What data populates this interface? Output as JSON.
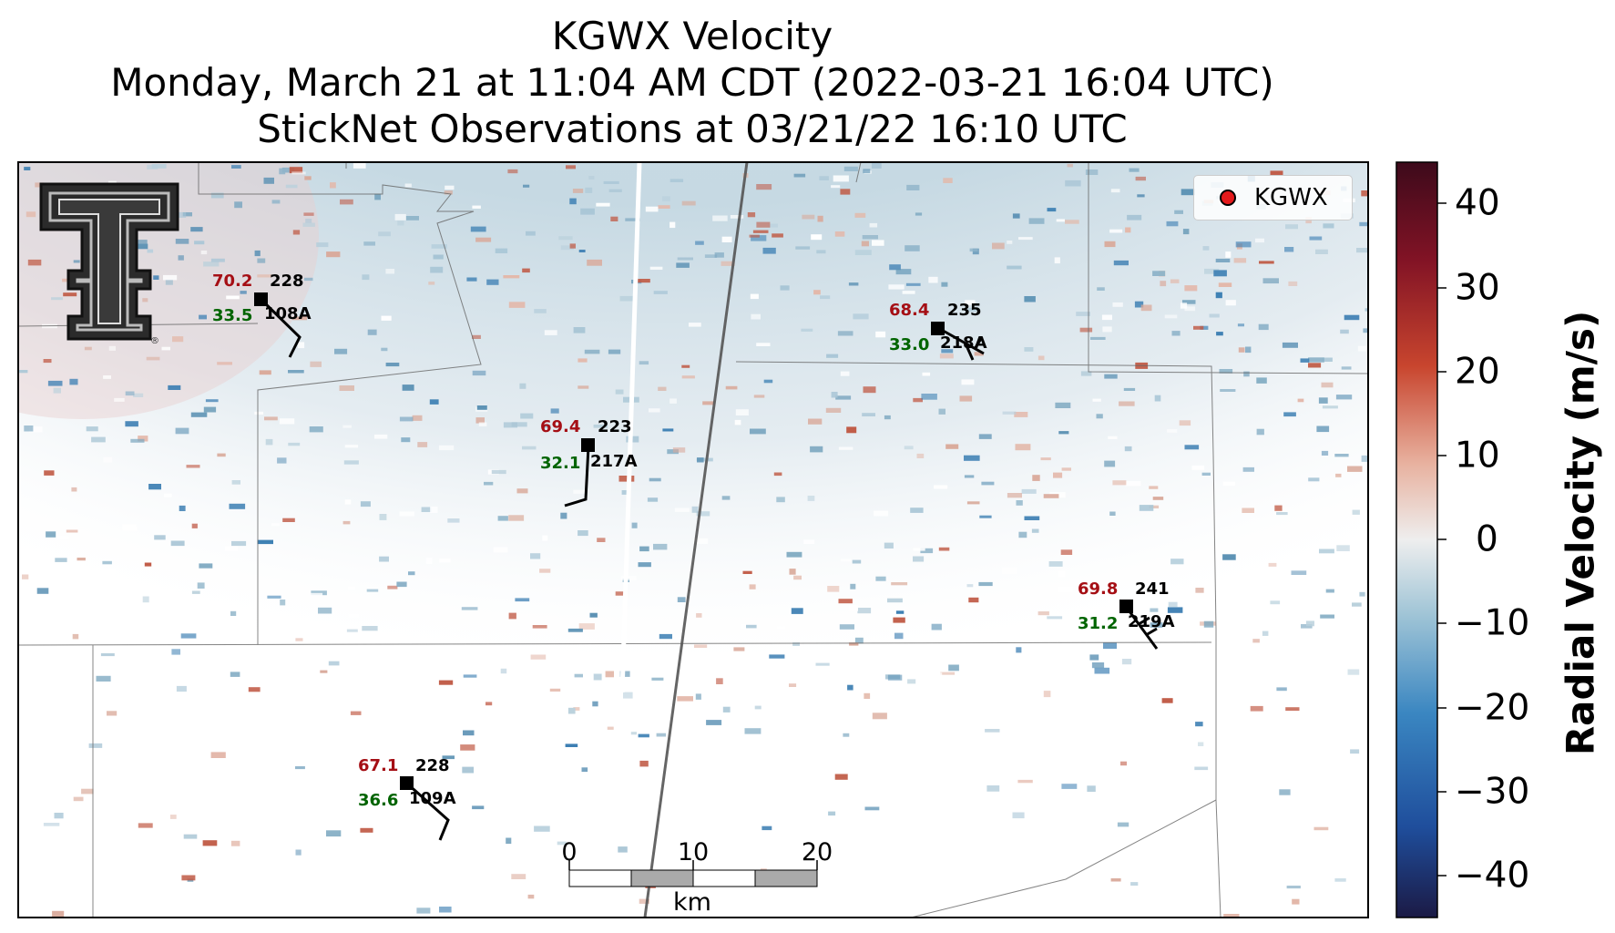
{
  "title": {
    "line1": "KGWX Velocity",
    "line2": "Monday, March 21 at 11:04 AM CDT (2022-03-21 16:04 UTC)",
    "line3": "StickNet Observations at 03/21/22 16:10 UTC"
  },
  "legend": {
    "label": "KGWX",
    "marker_color": "#e31a1c"
  },
  "colorbar": {
    "label": "Radial Velocity (m/s)",
    "ticks": [
      "40",
      "30",
      "20",
      "10",
      "0",
      "−10",
      "−20",
      "−30",
      "−40"
    ],
    "range": [
      -45,
      45
    ],
    "colors": [
      "#1b1a45",
      "#1f4e9c",
      "#3a86c1",
      "#9fc4d6",
      "#eeeeee",
      "#e8b2a0",
      "#c8452e",
      "#821325",
      "#3d0a1b"
    ]
  },
  "scale_bar": {
    "labels": [
      "0",
      "10",
      "20"
    ],
    "unit": "km"
  },
  "stations": [
    {
      "id": "108A",
      "temp": "70.2",
      "dew": "33.5",
      "pres": "228"
    },
    {
      "id": "217A",
      "temp": "69.4",
      "dew": "32.1",
      "pres": "223"
    },
    {
      "id": "218A",
      "temp": "68.4",
      "dew": "33.0",
      "pres": "235"
    },
    {
      "id": "219A",
      "temp": "69.8",
      "dew": "31.2",
      "pres": "241"
    },
    {
      "id": "109A",
      "temp": "67.1",
      "dew": "36.6",
      "pres": "228"
    }
  ],
  "colors": {
    "temp": "#a50f15",
    "dew": "#006400",
    "pres": "#000000"
  },
  "logo": {
    "name": "texas-tech-double-t-logo"
  }
}
